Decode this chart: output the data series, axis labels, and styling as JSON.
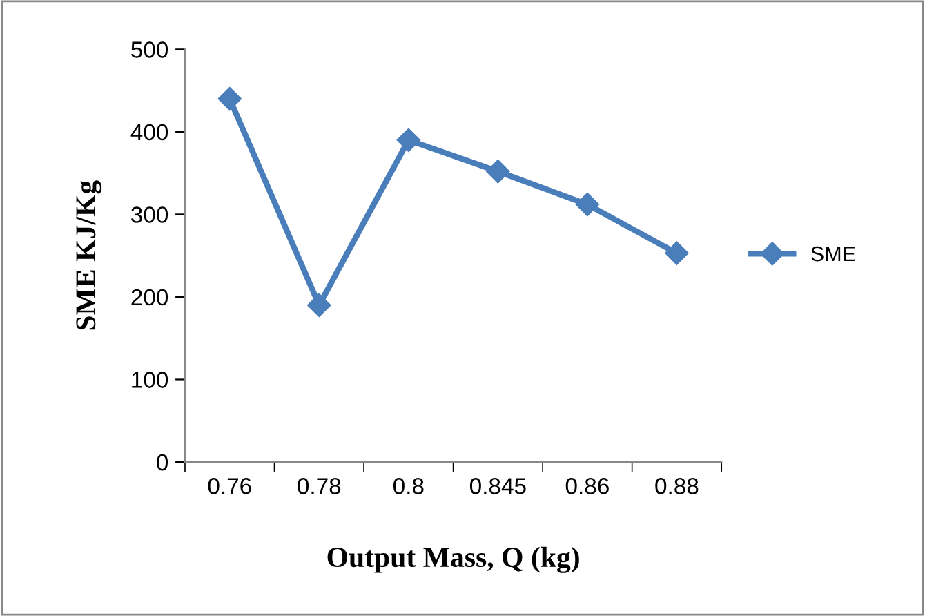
{
  "chart_data": {
    "type": "line",
    "xlabel": "Output Mass, Q (kg)",
    "ylabel": "SME KJ/Kg",
    "categories": [
      "0.76",
      "0.78",
      "0.8",
      "0.845",
      "0.86",
      "0.88"
    ],
    "series": [
      {
        "name": "SME",
        "color": "#4a7ebb",
        "values": [
          440,
          190,
          390,
          352,
          312,
          253
        ]
      }
    ],
    "ylim": [
      0,
      500
    ],
    "yticks": [
      0,
      100,
      200,
      300,
      400,
      500
    ],
    "grid": false,
    "legend": "right",
    "marker": "diamond",
    "line_style": "solid"
  }
}
